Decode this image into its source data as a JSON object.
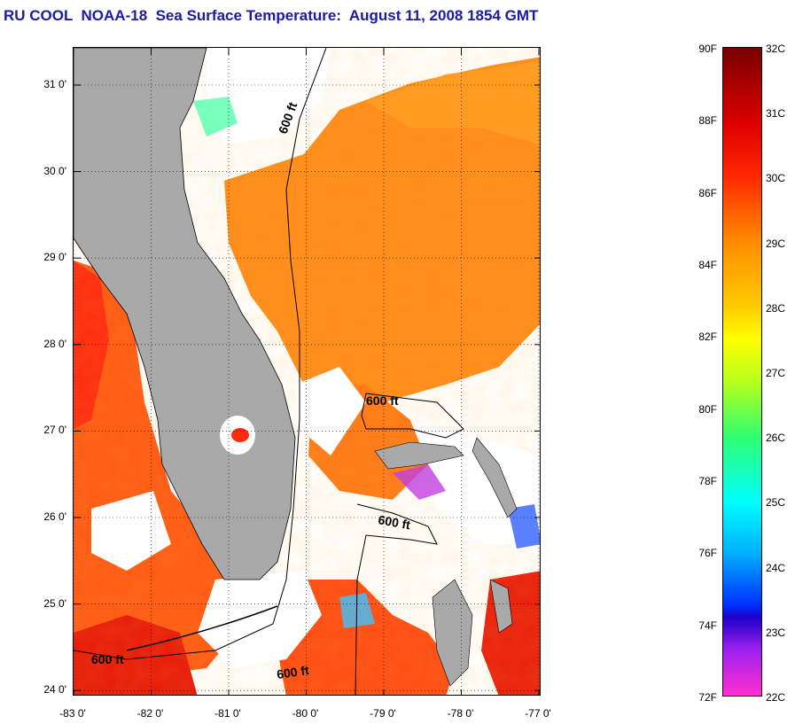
{
  "title": "RU COOL  NOAA-18  Sea Surface Temperature:  August 11, 2008 1854 GMT",
  "map": {
    "lat_ticks": [
      {
        "value": 31,
        "label": "31 0'"
      },
      {
        "value": 30,
        "label": "30 0'"
      },
      {
        "value": 29,
        "label": "29 0'"
      },
      {
        "value": 28,
        "label": "28 0'"
      },
      {
        "value": 27,
        "label": "27 0'"
      },
      {
        "value": 26,
        "label": "26 0'"
      },
      {
        "value": 25,
        "label": "25 0'"
      },
      {
        "value": 24,
        "label": "24 0'"
      }
    ],
    "lon_ticks": [
      {
        "value": -83,
        "label": "-83 0'"
      },
      {
        "value": -82,
        "label": "-82 0'"
      },
      {
        "value": -81,
        "label": "-81 0'"
      },
      {
        "value": -80,
        "label": "-80 0'"
      },
      {
        "value": -79,
        "label": "-79 0'"
      },
      {
        "value": -78,
        "label": "-78 0'"
      },
      {
        "value": -77,
        "label": "-77 0'"
      }
    ],
    "contour_labels": [
      "600 ft",
      "600 ft",
      "600 ft",
      "600 ft",
      "600 ft"
    ],
    "colors": {
      "land": "#a9a9a9",
      "cloud": "#ffffff",
      "warm": "#ff8c1a",
      "hot": "#ff2a10"
    }
  },
  "legend": {
    "fahrenheit": [
      "90F",
      "88F",
      "86F",
      "84F",
      "82F",
      "80F",
      "78F",
      "76F",
      "74F",
      "72F"
    ],
    "celsius": [
      "32C",
      "31C",
      "30C",
      "29C",
      "28C",
      "27C",
      "26C",
      "25C",
      "24C",
      "23C",
      "22C"
    ]
  }
}
